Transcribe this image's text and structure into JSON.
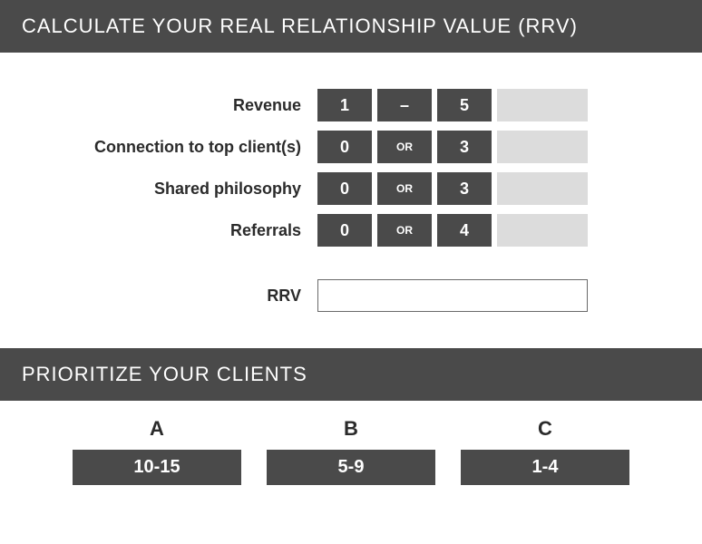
{
  "calc": {
    "header": "CALCULATE YOUR REAL RELATIONSHIP VALUE (RRV)",
    "rows": [
      {
        "label": "Revenue",
        "low": "1",
        "sep": "–",
        "high": "5"
      },
      {
        "label": "Connection to top client(s)",
        "low": "0",
        "sep": "OR",
        "high": "3"
      },
      {
        "label": "Shared philosophy",
        "low": "0",
        "sep": "OR",
        "high": "3"
      },
      {
        "label": "Referrals",
        "low": "0",
        "sep": "OR",
        "high": "4"
      }
    ],
    "total_label": "RRV"
  },
  "priority": {
    "header": "PRIORITIZE YOUR CLIENTS",
    "cols": [
      {
        "letter": "A",
        "range": "10-15"
      },
      {
        "letter": "B",
        "range": "5-9"
      },
      {
        "letter": "C",
        "range": "1-4"
      }
    ]
  },
  "colors": {
    "header_bg": "#4a4a4a",
    "header_fg": "#ffffff",
    "cell_dark_bg": "#4a4a4a",
    "cell_light_bg": "#dcdcdc",
    "text": "#2b2b2b",
    "rrv_border": "#6a6a6a"
  }
}
